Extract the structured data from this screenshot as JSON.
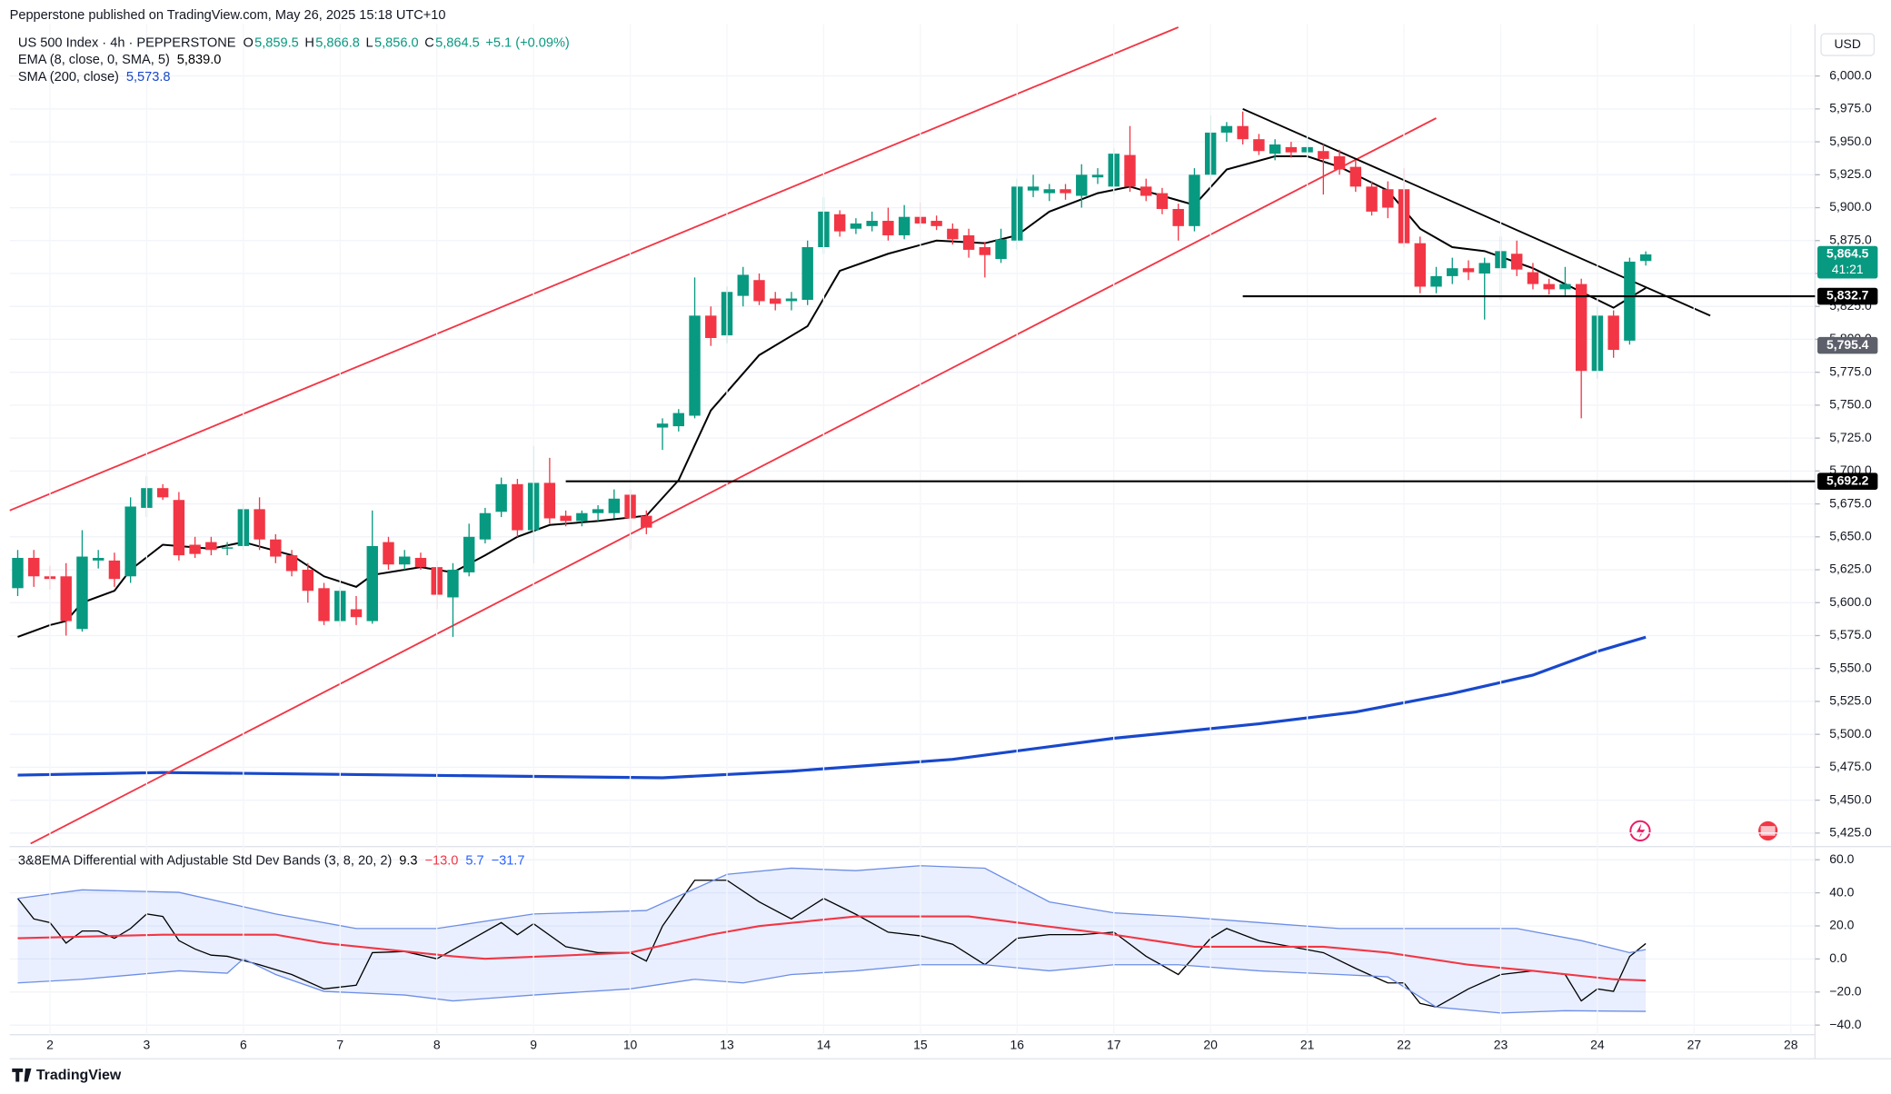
{
  "header": {
    "publisher": "Pepperstone published on TradingView.com, May 26, 2025 15:18 UTC+10",
    "brand": "TradingView"
  },
  "chart_data": [
    {
      "type": "candlestick",
      "title": "US 500 Index · 4h · PEPPERSTONE",
      "ohlc_legend": [
        {
          "name": "O",
          "value_label": "5,859.5"
        },
        {
          "name": "H",
          "value_label": "5,866.8"
        },
        {
          "name": "L",
          "value_label": "5,856.0"
        },
        {
          "name": "C",
          "value_label": "5,864.5"
        }
      ],
      "change": "+5.1 (+0.09%)",
      "currency": "USD",
      "categories": [
        null,
        null,
        "2",
        null,
        null,
        null,
        null,
        null,
        "3",
        null,
        null,
        null,
        null,
        null,
        "6",
        null,
        null,
        null,
        null,
        null,
        "7",
        null,
        null,
        null,
        null,
        null,
        "8",
        null,
        null,
        null,
        null,
        null,
        "9",
        null,
        null,
        null,
        null,
        null,
        "10",
        null,
        null,
        null,
        null,
        null,
        "13",
        null,
        null,
        null,
        null,
        null,
        "14",
        null,
        null,
        null,
        null,
        null,
        "15",
        null,
        null,
        null,
        null,
        null,
        "16",
        null,
        null,
        null,
        null,
        null,
        "17",
        null,
        null,
        null,
        null,
        null,
        "20",
        null,
        null,
        null,
        null,
        null,
        "21",
        null,
        null,
        null,
        null,
        null,
        "22",
        null,
        null,
        null,
        null,
        null,
        "23",
        null,
        null,
        null,
        null,
        null,
        "24",
        null,
        null,
        null,
        null,
        null,
        "27",
        null,
        null,
        null,
        null,
        null,
        "28",
        null
      ],
      "open": [
        5611,
        5634,
        5620,
        5620,
        5580,
        5632,
        5632,
        5620,
        5672,
        5687,
        5678,
        5644,
        5646,
        5641,
        5643,
        5671,
        5648,
        5636,
        5625,
        5611,
        5586,
        5595,
        5586,
        5646,
        5629,
        5634,
        5627,
        5604,
        5623,
        5648,
        5669,
        5690,
        5655,
        5691,
        5666,
        5662,
        5668,
        5668,
        5682,
        5666,
        5733,
        5734,
        5742,
        5818,
        5803,
        5833,
        5845,
        5831,
        5829,
        5830,
        5870,
        5895,
        5884,
        5886,
        5890,
        5879,
        5893,
        5890,
        5884,
        5879,
        5870,
        5861,
        5875,
        5913,
        5911,
        5914,
        5909,
        5923,
        5916,
        5940,
        5916,
        5911,
        5899,
        5886,
        5925,
        5957,
        5962,
        5952,
        5941,
        5946,
        5942,
        5943,
        5939,
        5931,
        5916,
        5914,
        5914,
        5873,
        5840,
        5848,
        5854,
        5850,
        5854,
        5865,
        5851,
        5842,
        5838,
        5842,
        5776,
        5818,
        5799,
        5859.5,
        null,
        null,
        null,
        null,
        null,
        null,
        null,
        null,
        null,
        null
      ],
      "high": [
        5640,
        5640,
        5628,
        5630,
        5655,
        5640,
        5638,
        5680,
        5696,
        5690,
        5684,
        5650,
        5650,
        5646,
        5675,
        5680,
        5652,
        5640,
        5630,
        5615,
        5612,
        5605,
        5670,
        5650,
        5640,
        5638,
        5632,
        5630,
        5660,
        5672,
        5695,
        5694,
        5719,
        5710,
        5670,
        5670,
        5674,
        5686,
        5686,
        5670,
        5740,
        5747,
        5847,
        5825,
        5840,
        5855,
        5850,
        5836,
        5836,
        5875,
        5908,
        5898,
        5892,
        5897,
        5900,
        5902,
        5904,
        5894,
        5888,
        5884,
        5874,
        5884,
        5922,
        5925,
        5918,
        5918,
        5933,
        5930,
        5945,
        5962,
        5922,
        5915,
        5903,
        5930,
        5970,
        5965,
        5973,
        5956,
        5952,
        5950,
        5955,
        5948,
        5944,
        5936,
        5920,
        5920,
        5930,
        5878,
        5855,
        5862,
        5860,
        5862,
        5878,
        5875,
        5858,
        5846,
        5855,
        5846,
        5825,
        5822,
        5862,
        5866.8,
        null,
        null,
        null,
        null,
        null,
        null,
        null,
        null,
        null,
        null
      ],
      "low": [
        5605,
        5612,
        5610,
        5575,
        5578,
        5626,
        5612,
        5615,
        5665,
        5678,
        5632,
        5634,
        5636,
        5636,
        5640,
        5640,
        5630,
        5620,
        5600,
        5583,
        5582,
        5583,
        5584,
        5625,
        5625,
        5625,
        5595,
        5574,
        5620,
        5645,
        5665,
        5650,
        5630,
        5660,
        5658,
        5658,
        5662,
        5664,
        5640,
        5652,
        5716,
        5730,
        5740,
        5795,
        5797,
        5825,
        5826,
        5822,
        5822,
        5826,
        5865,
        5878,
        5880,
        5882,
        5875,
        5876,
        5885,
        5883,
        5872,
        5862,
        5847,
        5858,
        5868,
        5908,
        5905,
        5906,
        5900,
        5918,
        5910,
        5912,
        5905,
        5895,
        5875,
        5882,
        5920,
        5950,
        5948,
        5940,
        5936,
        5938,
        5936,
        5910,
        5925,
        5912,
        5894,
        5892,
        5870,
        5835,
        5835,
        5842,
        5845,
        5815,
        5830,
        5848,
        5838,
        5834,
        5832,
        5740,
        5770,
        5786,
        5796,
        5856.0,
        null,
        null,
        null,
        null,
        null,
        null,
        null,
        null,
        null,
        null
      ],
      "close": [
        5634,
        5620,
        5618,
        5586,
        5635,
        5634,
        5618,
        5673,
        5687,
        5680,
        5636,
        5637,
        5640,
        5642,
        5671,
        5648,
        5635,
        5624,
        5609,
        5586,
        5609,
        5589,
        5643,
        5629,
        5635,
        5627,
        5606,
        5625,
        5650,
        5668,
        5690,
        5655,
        5691,
        5664,
        5662,
        5668,
        5671,
        5679,
        5664,
        5657,
        5736,
        5744,
        5818,
        5801,
        5836,
        5849,
        5829,
        5827,
        5831,
        5870,
        5897,
        5882,
        5888,
        5890,
        5879,
        5893,
        5888,
        5886,
        5876,
        5868,
        5864,
        5876,
        5916,
        5916,
        5914,
        5911,
        5925,
        5925,
        5941,
        5916,
        5909,
        5899,
        5886,
        5925,
        5957,
        5962,
        5952,
        5943,
        5948,
        5942,
        5946,
        5937,
        5929,
        5916,
        5897,
        5900,
        5873,
        5840,
        5848,
        5854,
        5851,
        5858,
        5867,
        5853,
        5842,
        5838,
        5842,
        5776,
        5818,
        5792,
        5859,
        5864.5,
        null,
        null,
        null,
        null,
        null,
        null,
        null,
        null,
        null,
        null
      ],
      "up_color": "#089981",
      "down_color": "#f23645",
      "overlays": [
        {
          "name": "EMA (8, close, 0, SMA, 5)",
          "value_label": "5,839.0",
          "color": "#000000",
          "x": [
            0,
            2,
            3,
            4,
            6,
            7,
            9,
            12,
            14,
            17,
            19,
            21,
            22,
            25,
            27,
            29,
            31,
            33,
            36,
            39,
            41,
            43,
            46,
            49,
            51,
            54,
            57,
            60,
            62,
            64,
            67,
            69,
            71,
            73,
            75,
            78,
            80,
            82,
            85,
            87,
            89,
            91,
            94,
            96,
            99,
            101
          ],
          "values": [
            5574,
            5583,
            5586,
            5600,
            5609,
            5625,
            5644,
            5641,
            5646,
            5636,
            5620,
            5612,
            5621,
            5627,
            5623,
            5636,
            5650,
            5659,
            5662,
            5666,
            5693,
            5746,
            5788,
            5810,
            5852,
            5865,
            5875,
            5873,
            5879,
            5897,
            5911,
            5916,
            5909,
            5902,
            5929,
            5939,
            5939,
            5931,
            5913,
            5884,
            5870,
            5867,
            5854,
            5842,
            5824,
            5839.0
          ]
        },
        {
          "name": "SMA (200, close)",
          "value_label": "5,573.8",
          "color": "#1848cc",
          "x": [
            0,
            9,
            40,
            48,
            58,
            68,
            77,
            83,
            89,
            94,
            98,
            101
          ],
          "values": [
            5469,
            5471,
            5467,
            5472,
            5481,
            5497,
            5508,
            5517,
            5531,
            5545,
            5563,
            5573.8
          ]
        }
      ],
      "trendlines": [
        {
          "color": "#f23645",
          "x": [
            -0.5,
            72
          ],
          "y": [
            5670,
            6037
          ]
        },
        {
          "color": "#f23645",
          "x": [
            0.8,
            88
          ],
          "y": [
            5417,
            5968
          ]
        },
        {
          "color": "#000000",
          "x": [
            76,
            105
          ],
          "y": [
            5975,
            5818
          ]
        }
      ],
      "levels": [
        {
          "value": 5832.7,
          "label": "5,832.7",
          "start": 76,
          "color": "#000000"
        },
        {
          "value": 5692.2,
          "label": "5,692.2",
          "start": 34,
          "color": "#000000"
        }
      ],
      "price_tags": [
        {
          "value": 5864.5,
          "label": "5,864.5",
          "countdown": "41:21",
          "color": "#089981"
        },
        {
          "value": 5795.4,
          "label": "5,795.4",
          "color": "#5d606b"
        }
      ],
      "ylim": [
        5416.6,
        6039.4
      ],
      "yticks": [
        {
          "value": 6000,
          "label": "6,000.0"
        },
        {
          "value": 5975,
          "label": "5,975.0"
        },
        {
          "value": 5950,
          "label": "5,950.0"
        },
        {
          "value": 5925,
          "label": "5,925.0"
        },
        {
          "value": 5900,
          "label": "5,900.0"
        },
        {
          "value": 5875,
          "label": "5,875.0"
        },
        {
          "value": 5850,
          "label": "5,850.0"
        },
        {
          "value": 5825,
          "label": "5,825.0"
        },
        {
          "value": 5800,
          "label": "5,800.0"
        },
        {
          "value": 5775,
          "label": "5,775.0"
        },
        {
          "value": 5750,
          "label": "5,750.0"
        },
        {
          "value": 5725,
          "label": "5,725.0"
        },
        {
          "value": 5700,
          "label": "5,700.0"
        },
        {
          "value": 5675,
          "label": "5,675.0"
        },
        {
          "value": 5650,
          "label": "5,650.0"
        },
        {
          "value": 5625,
          "label": "5,625.0"
        },
        {
          "value": 5600,
          "label": "5,600.0"
        },
        {
          "value": 5575,
          "label": "5,575.0"
        },
        {
          "value": 5550,
          "label": "5,550.0"
        },
        {
          "value": 5525,
          "label": "5,525.0"
        },
        {
          "value": 5500,
          "label": "5,500.0"
        },
        {
          "value": 5475,
          "label": "5,475.0"
        },
        {
          "value": 5450,
          "label": "5,450.0"
        },
        {
          "value": 5425,
          "label": "5,425.0"
        }
      ],
      "grid": true
    },
    {
      "type": "line",
      "title": "3&8EMA Differential with Adjustable Std Dev Bands (3, 8, 20, 2)",
      "xlim": [
        -0.5,
        111.5
      ],
      "ylim": [
        -45.8,
        65.8
      ],
      "yticks": [
        {
          "value": 60,
          "label": "60.0"
        },
        {
          "value": 40,
          "label": "40.0"
        },
        {
          "value": 20,
          "label": "20.0"
        },
        {
          "value": 0,
          "label": "0.0"
        },
        {
          "value": -20,
          "label": "−20.0"
        },
        {
          "value": -40,
          "label": "−40.0"
        }
      ],
      "band_fill": "rgba(41,98,255,0.10)",
      "series": [
        {
          "color": "#000000",
          "value_label": "9.3",
          "x": [
            0,
            1,
            2,
            3,
            4,
            5,
            6,
            7,
            8,
            9,
            10,
            11,
            12,
            13,
            15,
            17,
            19,
            21,
            22,
            24,
            26,
            28,
            30,
            31,
            32,
            34,
            36,
            38,
            39,
            40,
            42,
            44,
            46,
            48,
            50,
            52,
            54,
            56,
            58,
            60,
            62,
            64,
            66,
            68,
            70,
            72,
            74,
            75,
            77,
            79,
            81,
            83,
            85,
            86,
            87,
            88,
            90,
            92,
            94,
            96,
            97,
            98,
            99,
            100,
            101
          ],
          "values": [
            36.6,
            24.2,
            22,
            9.6,
            16.9,
            16.9,
            12.5,
            18.4,
            27.2,
            25.7,
            11.1,
            6,
            2.3,
            1.6,
            -3.5,
            -9.4,
            -18.1,
            -15.9,
            3.8,
            4.5,
            0.1,
            11,
            22,
            14.7,
            21.3,
            7.4,
            3.8,
            3.8,
            -1.3,
            19.9,
            47.6,
            47.6,
            34.5,
            24.2,
            36.6,
            27,
            16.2,
            14,
            8.9,
            -3.5,
            12.5,
            14.7,
            14.7,
            16.2,
            1.6,
            -9.4,
            12.5,
            18.4,
            11,
            7.4,
            3.8,
            -5.7,
            -14.5,
            -14.5,
            -26.9,
            -29.1,
            -18.1,
            -9.4,
            -7.2,
            -9.4,
            -25.4,
            -18.1,
            -19.6,
            1.5,
            9.3
          ]
        },
        {
          "color": "#f23645",
          "value_label": "−13.0",
          "x": [
            0,
            9,
            16,
            19,
            27,
            29,
            38,
            43,
            46,
            52,
            59,
            62,
            68,
            73,
            81,
            85,
            90,
            94,
            99,
            101
          ],
          "values": [
            12.5,
            14.7,
            14.7,
            9.6,
            1.6,
            0.1,
            3.8,
            14.7,
            19.9,
            25.7,
            25.7,
            22,
            14.7,
            7.4,
            7.4,
            3.8,
            -3.5,
            -7.2,
            -12.3,
            -13.0
          ]
        },
        {
          "color": "#6d8ee6",
          "value_label": "5.7",
          "x": [
            0,
            4,
            10,
            16,
            21,
            26,
            32,
            39,
            44,
            48,
            52,
            56,
            60,
            64,
            68,
            72,
            77,
            82,
            87,
            93,
            97,
            100,
            101
          ],
          "values": [
            36.6,
            41.8,
            40.3,
            27.2,
            18.4,
            18.4,
            27.2,
            29.3,
            51.2,
            54.9,
            53.4,
            56.4,
            54.9,
            34.5,
            27.9,
            25.7,
            22,
            18.4,
            18.4,
            18.4,
            11.1,
            3.8,
            5.7
          ]
        },
        {
          "color": "#6d8ee6",
          "value_label": "−31.7",
          "x": [
            0,
            4,
            10,
            13,
            14,
            16,
            19,
            24,
            27,
            32,
            38,
            42,
            45,
            48,
            52,
            56,
            60,
            64,
            68,
            72,
            77,
            82,
            85,
            88,
            92,
            96,
            101
          ],
          "values": [
            -14.5,
            -12.3,
            -7.2,
            -8.6,
            0.1,
            -9.4,
            -19.6,
            -21.8,
            -25.4,
            -21.8,
            -18.1,
            -12.3,
            -14.5,
            -9.4,
            -7.2,
            -3.5,
            -3.5,
            -7.2,
            -3.5,
            -3.5,
            -7.2,
            -9.4,
            -10.8,
            -29.1,
            -32.7,
            -31.3,
            -31.7
          ]
        }
      ]
    }
  ]
}
